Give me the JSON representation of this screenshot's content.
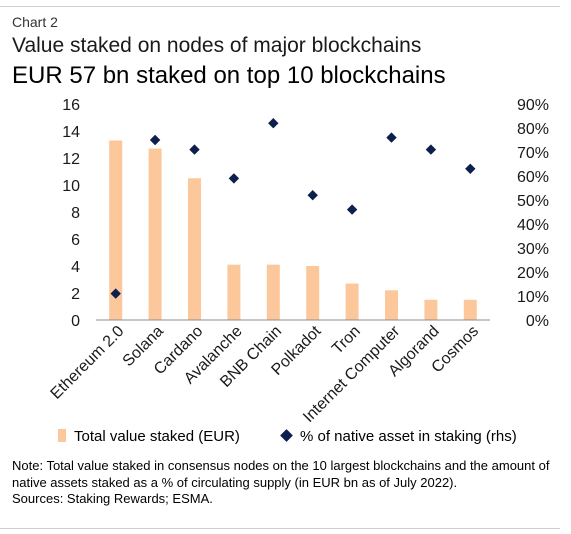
{
  "header": {
    "label": "Chart  2",
    "title": "Value staked on nodes of major blockchains",
    "subtitle": "EUR 57 bn staked on top 10 blockchains"
  },
  "colors": {
    "bar": "#fcc89b",
    "marker": "#0d1f4c",
    "axis": "#8c8c8c"
  },
  "chart_data": {
    "type": "bar",
    "categories": [
      "Ethereum 2.0",
      "Solana",
      "Cardano",
      "Avalanche",
      "BNB Chain",
      "Polkadot",
      "Tron",
      "Internet Computer",
      "Algorand",
      "Cosmos"
    ],
    "series": [
      {
        "name": "Total value staked (EUR)",
        "type": "bar",
        "axis": "left",
        "values": [
          13.3,
          12.7,
          10.5,
          4.1,
          4.1,
          4.0,
          2.7,
          2.2,
          1.5,
          1.5
        ]
      },
      {
        "name": "% of native asset in staking (rhs)",
        "type": "scatter",
        "marker": "diamond",
        "axis": "right",
        "values": [
          11,
          75,
          71,
          59,
          82,
          52,
          46,
          76,
          71,
          63
        ]
      }
    ],
    "ylim": [
      0,
      16
    ],
    "yticks": [
      "0",
      "2",
      "4",
      "6",
      "8",
      "10",
      "12",
      "14",
      "16"
    ],
    "y2lim": [
      0,
      90
    ],
    "y2ticks": [
      "0%",
      "10%",
      "20%",
      "30%",
      "40%",
      "50%",
      "60%",
      "70%",
      "80%",
      "90%"
    ],
    "legend_position": "bottom"
  },
  "legend": {
    "bar_label": "Total value staked (EUR)",
    "marker_label": "% of native asset in staking (rhs)"
  },
  "footer": {
    "note": "Note: Total value staked in consensus nodes on the 10 largest blockchains and the amount of native assets staked as a % of circulating supply (in EUR bn as of July 2022).",
    "sources": "Sources: Staking Rewards; ESMA."
  }
}
